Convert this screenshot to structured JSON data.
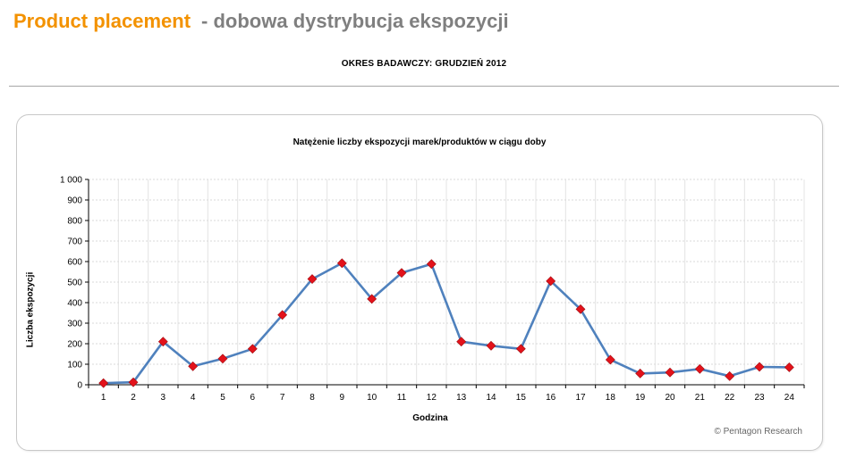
{
  "header": {
    "title_main": "Product placement",
    "title_rest": "- dobowa dystrybucja ekspozycji",
    "subtitle": "OKRES BADAWCZY: GRUDZIEŃ 2012"
  },
  "colors": {
    "title_accent": "#F39200",
    "title_gray": "#7F7F7F",
    "series_line": "#4F81BD",
    "marker_fill": "#E3121B",
    "marker_stroke": "#9E0B10"
  },
  "chart_data": {
    "type": "line",
    "title": "Natężenie liczby ekspozycji marek/produktów w ciągu doby",
    "xlabel": "Godzina",
    "ylabel": "Liczba ekspozycji",
    "categories": [
      "1",
      "2",
      "3",
      "4",
      "5",
      "6",
      "7",
      "8",
      "9",
      "10",
      "11",
      "12",
      "13",
      "14",
      "15",
      "16",
      "17",
      "18",
      "19",
      "20",
      "21",
      "22",
      "23",
      "24"
    ],
    "series": [
      {
        "values": [
          8,
          12,
          210,
          90,
          127,
          175,
          340,
          515,
          592,
          418,
          545,
          588,
          210,
          190,
          175,
          505,
          368,
          122,
          55,
          60,
          77,
          42,
          87,
          85
        ]
      }
    ],
    "ylim": [
      0,
      1000
    ],
    "yticks": [
      0,
      100,
      200,
      300,
      400,
      500,
      600,
      700,
      800,
      900,
      1000
    ],
    "ytick_labels": [
      "0",
      "100",
      "200",
      "300",
      "400",
      "500",
      "600",
      "700",
      "800",
      "900",
      "1 000"
    ],
    "grid": true
  },
  "footer": {
    "copyright": "© Pentagon Research"
  }
}
